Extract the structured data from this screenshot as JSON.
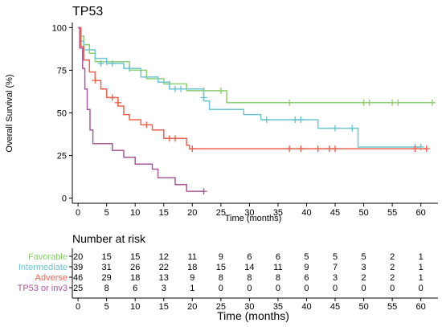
{
  "chart_data": {
    "type": "line",
    "subtype": "kaplan-meier",
    "title": "TP53",
    "xlabel": "Time (months)",
    "ylabel": "Overall Survival (%)",
    "xlim": [
      -1,
      63
    ],
    "ylim": [
      -3,
      103
    ],
    "xticks": [
      0,
      5,
      10,
      15,
      20,
      25,
      30,
      35,
      40,
      45,
      50,
      55,
      60
    ],
    "yticks": [
      0,
      25,
      50,
      75,
      100
    ],
    "grid": false,
    "legend": "none",
    "series": [
      {
        "name": "Favorable",
        "color": "#8DCF73",
        "steps": [
          [
            0,
            100
          ],
          [
            0.5,
            95
          ],
          [
            1,
            90
          ],
          [
            2,
            85
          ],
          [
            3,
            80
          ],
          [
            9,
            75
          ],
          [
            12,
            70
          ],
          [
            15,
            67
          ],
          [
            19,
            63
          ],
          [
            26,
            56
          ],
          [
            62,
            56
          ]
        ],
        "censors": [
          [
            5,
            80
          ],
          [
            16,
            67
          ],
          [
            22,
            63
          ],
          [
            25,
            63
          ],
          [
            37,
            56
          ],
          [
            50,
            56
          ],
          [
            51,
            56
          ],
          [
            55,
            56
          ],
          [
            56,
            56
          ],
          [
            62,
            56
          ]
        ]
      },
      {
        "name": "Intermediate",
        "color": "#6CC5D2",
        "steps": [
          [
            0,
            100
          ],
          [
            0.5,
            92
          ],
          [
            1,
            87
          ],
          [
            3,
            82
          ],
          [
            5,
            79
          ],
          [
            8,
            76
          ],
          [
            11,
            71
          ],
          [
            14,
            68
          ],
          [
            16,
            64
          ],
          [
            22,
            57
          ],
          [
            23,
            52
          ],
          [
            29,
            49
          ],
          [
            32,
            46
          ],
          [
            42,
            41
          ],
          [
            48,
            41
          ],
          [
            49,
            30
          ],
          [
            60,
            30
          ]
        ],
        "censors": [
          [
            4,
            79
          ],
          [
            6,
            79
          ],
          [
            9,
            76
          ],
          [
            17,
            64
          ],
          [
            18,
            64
          ],
          [
            22,
            59
          ],
          [
            33,
            46
          ],
          [
            38,
            46
          ],
          [
            39,
            46
          ],
          [
            45,
            41
          ],
          [
            48,
            41
          ],
          [
            59,
            30
          ],
          [
            60,
            30
          ]
        ]
      },
      {
        "name": "Adverse",
        "color": "#F0624F",
        "steps": [
          [
            0,
            100
          ],
          [
            0.5,
            89
          ],
          [
            1,
            81
          ],
          [
            2,
            74
          ],
          [
            3,
            69
          ],
          [
            4,
            64
          ],
          [
            5,
            59
          ],
          [
            7,
            54
          ],
          [
            8,
            49
          ],
          [
            9,
            46
          ],
          [
            11,
            43
          ],
          [
            13,
            40
          ],
          [
            15,
            35
          ],
          [
            19,
            31
          ],
          [
            19.5,
            29
          ],
          [
            61,
            29
          ]
        ],
        "censors": [
          [
            3,
            69
          ],
          [
            6,
            59
          ],
          [
            7,
            56
          ],
          [
            12,
            43
          ],
          [
            16,
            35
          ],
          [
            17,
            35
          ],
          [
            20,
            29
          ],
          [
            37,
            29
          ],
          [
            39,
            29
          ],
          [
            42,
            29
          ],
          [
            44,
            29
          ],
          [
            45,
            29
          ],
          [
            59,
            29
          ],
          [
            61,
            29
          ]
        ]
      },
      {
        "name": "TP53 or inv3",
        "color": "#A75A9A",
        "steps": [
          [
            0,
            100
          ],
          [
            0.3,
            88
          ],
          [
            0.8,
            76
          ],
          [
            1.2,
            64
          ],
          [
            1.6,
            52
          ],
          [
            2.1,
            40
          ],
          [
            2.6,
            32
          ],
          [
            6,
            28
          ],
          [
            8,
            24
          ],
          [
            10,
            20
          ],
          [
            13,
            17
          ],
          [
            14,
            12
          ],
          [
            17,
            8
          ],
          [
            19,
            4
          ],
          [
            22,
            4
          ]
        ],
        "censors": [
          [
            22,
            4
          ]
        ]
      }
    ],
    "risk_table": {
      "title": "Number at risk",
      "xlabel": "Time (months)",
      "times": [
        0,
        5,
        10,
        15,
        20,
        25,
        30,
        35,
        40,
        45,
        50,
        55,
        60
      ],
      "rows": [
        {
          "name": "Favorable",
          "color": "#8DCF73",
          "values": [
            20,
            15,
            15,
            12,
            11,
            9,
            6,
            6,
            5,
            5,
            5,
            2,
            1
          ]
        },
        {
          "name": "Intermediate",
          "color": "#6CC5D2",
          "values": [
            39,
            31,
            26,
            22,
            18,
            15,
            14,
            11,
            9,
            7,
            3,
            2,
            1
          ]
        },
        {
          "name": "Adverse",
          "color": "#F0624F",
          "values": [
            46,
            29,
            18,
            13,
            9,
            8,
            8,
            8,
            6,
            3,
            2,
            2,
            1
          ]
        },
        {
          "name": "TP53 or inv3",
          "color": "#A75A9A",
          "values": [
            25,
            8,
            6,
            3,
            1,
            0,
            0,
            0,
            0,
            0,
            0,
            0,
            0
          ]
        }
      ]
    }
  }
}
